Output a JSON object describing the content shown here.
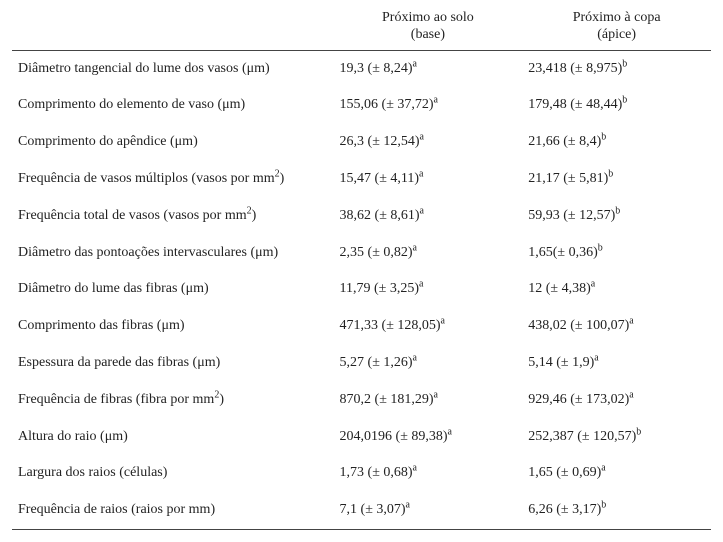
{
  "table": {
    "header": {
      "empty": "",
      "col1_line1": "Próximo ao solo",
      "col1_line2": "(base)",
      "col2_line1": "Próximo à copa",
      "col2_line2": "(ápice)"
    },
    "rows": [
      {
        "label": "Diâmetro tangencial do lume dos vasos (μm)",
        "base_val": "19,3 (± 8,24)",
        "base_sup": "a",
        "apice_val": "23,418 (± 8,975)",
        "apice_sup": "b"
      },
      {
        "label": "Comprimento do elemento de vaso (μm)",
        "base_val": "155,06 (± 37,72)",
        "base_sup": "a",
        "apice_val": "179,48 (± 48,44)",
        "apice_sup": "b"
      },
      {
        "label": "Comprimento do apêndice (μm)",
        "base_val": "26,3 (± 12,54)",
        "base_sup": "a",
        "apice_val": "21,66 (± 8,4)",
        "apice_sup": "b"
      },
      {
        "label_pre": "Frequência de vasos múltiplos (vasos por mm",
        "label_sup": "2",
        "label_post": ")",
        "base_val": "15,47 (± 4,11)",
        "base_sup": "a",
        "apice_val": "21,17 (± 5,81)",
        "apice_sup": "b"
      },
      {
        "label_pre": "Frequência total de vasos (vasos por mm",
        "label_sup": "2",
        "label_post": ")",
        "base_val": "38,62 (± 8,61)",
        "base_sup": "a",
        "apice_val": "59,93 (± 12,57)",
        "apice_sup": "b"
      },
      {
        "label": "Diâmetro das pontoações intervasculares (μm)",
        "base_val": "2,35 (± 0,82)",
        "base_sup": "a",
        "apice_val": "1,65(± 0,36)",
        "apice_sup": "b"
      },
      {
        "label": "Diâmetro do lume das fibras (μm)",
        "base_val": "11,79 (± 3,25)",
        "base_sup": "a",
        "apice_val": "12 (± 4,38)",
        "apice_sup": "a"
      },
      {
        "label": "Comprimento das fibras (μm)",
        "base_val": "471,33 (± 128,05)",
        "base_sup": "a",
        "apice_val": "438,02 (± 100,07)",
        "apice_sup": "a"
      },
      {
        "label": "Espessura da parede das fibras (μm)",
        "base_val": "5,27 (± 1,26)",
        "base_sup": "a",
        "apice_val": "5,14 (± 1,9)",
        "apice_sup": "a"
      },
      {
        "label_pre": "Frequência de fibras (fibra por mm",
        "label_sup": "2",
        "label_post": ")",
        "base_val": "870,2 (± 181,29)",
        "base_sup": "a",
        "apice_val": "929,46 (± 173,02)",
        "apice_sup": "a"
      },
      {
        "label": "Altura do raio (μm)",
        "base_val": "204,0196 (± 89,38)",
        "base_sup": "a",
        "apice_val": "252,387 (± 120,57)",
        "apice_sup": "b"
      },
      {
        "label": "Largura dos raios (células)",
        "base_val": "1,73 (± 0,68)",
        "base_sup": "a",
        "apice_val": "1,65 (± 0,69)",
        "apice_sup": "a"
      },
      {
        "label": "Frequência de raios (raios por mm)",
        "base_val": "7,1 (± 3,07)",
        "base_sup": "a",
        "apice_val": "6,26 (± 3,17)",
        "apice_sup": "b"
      }
    ]
  }
}
